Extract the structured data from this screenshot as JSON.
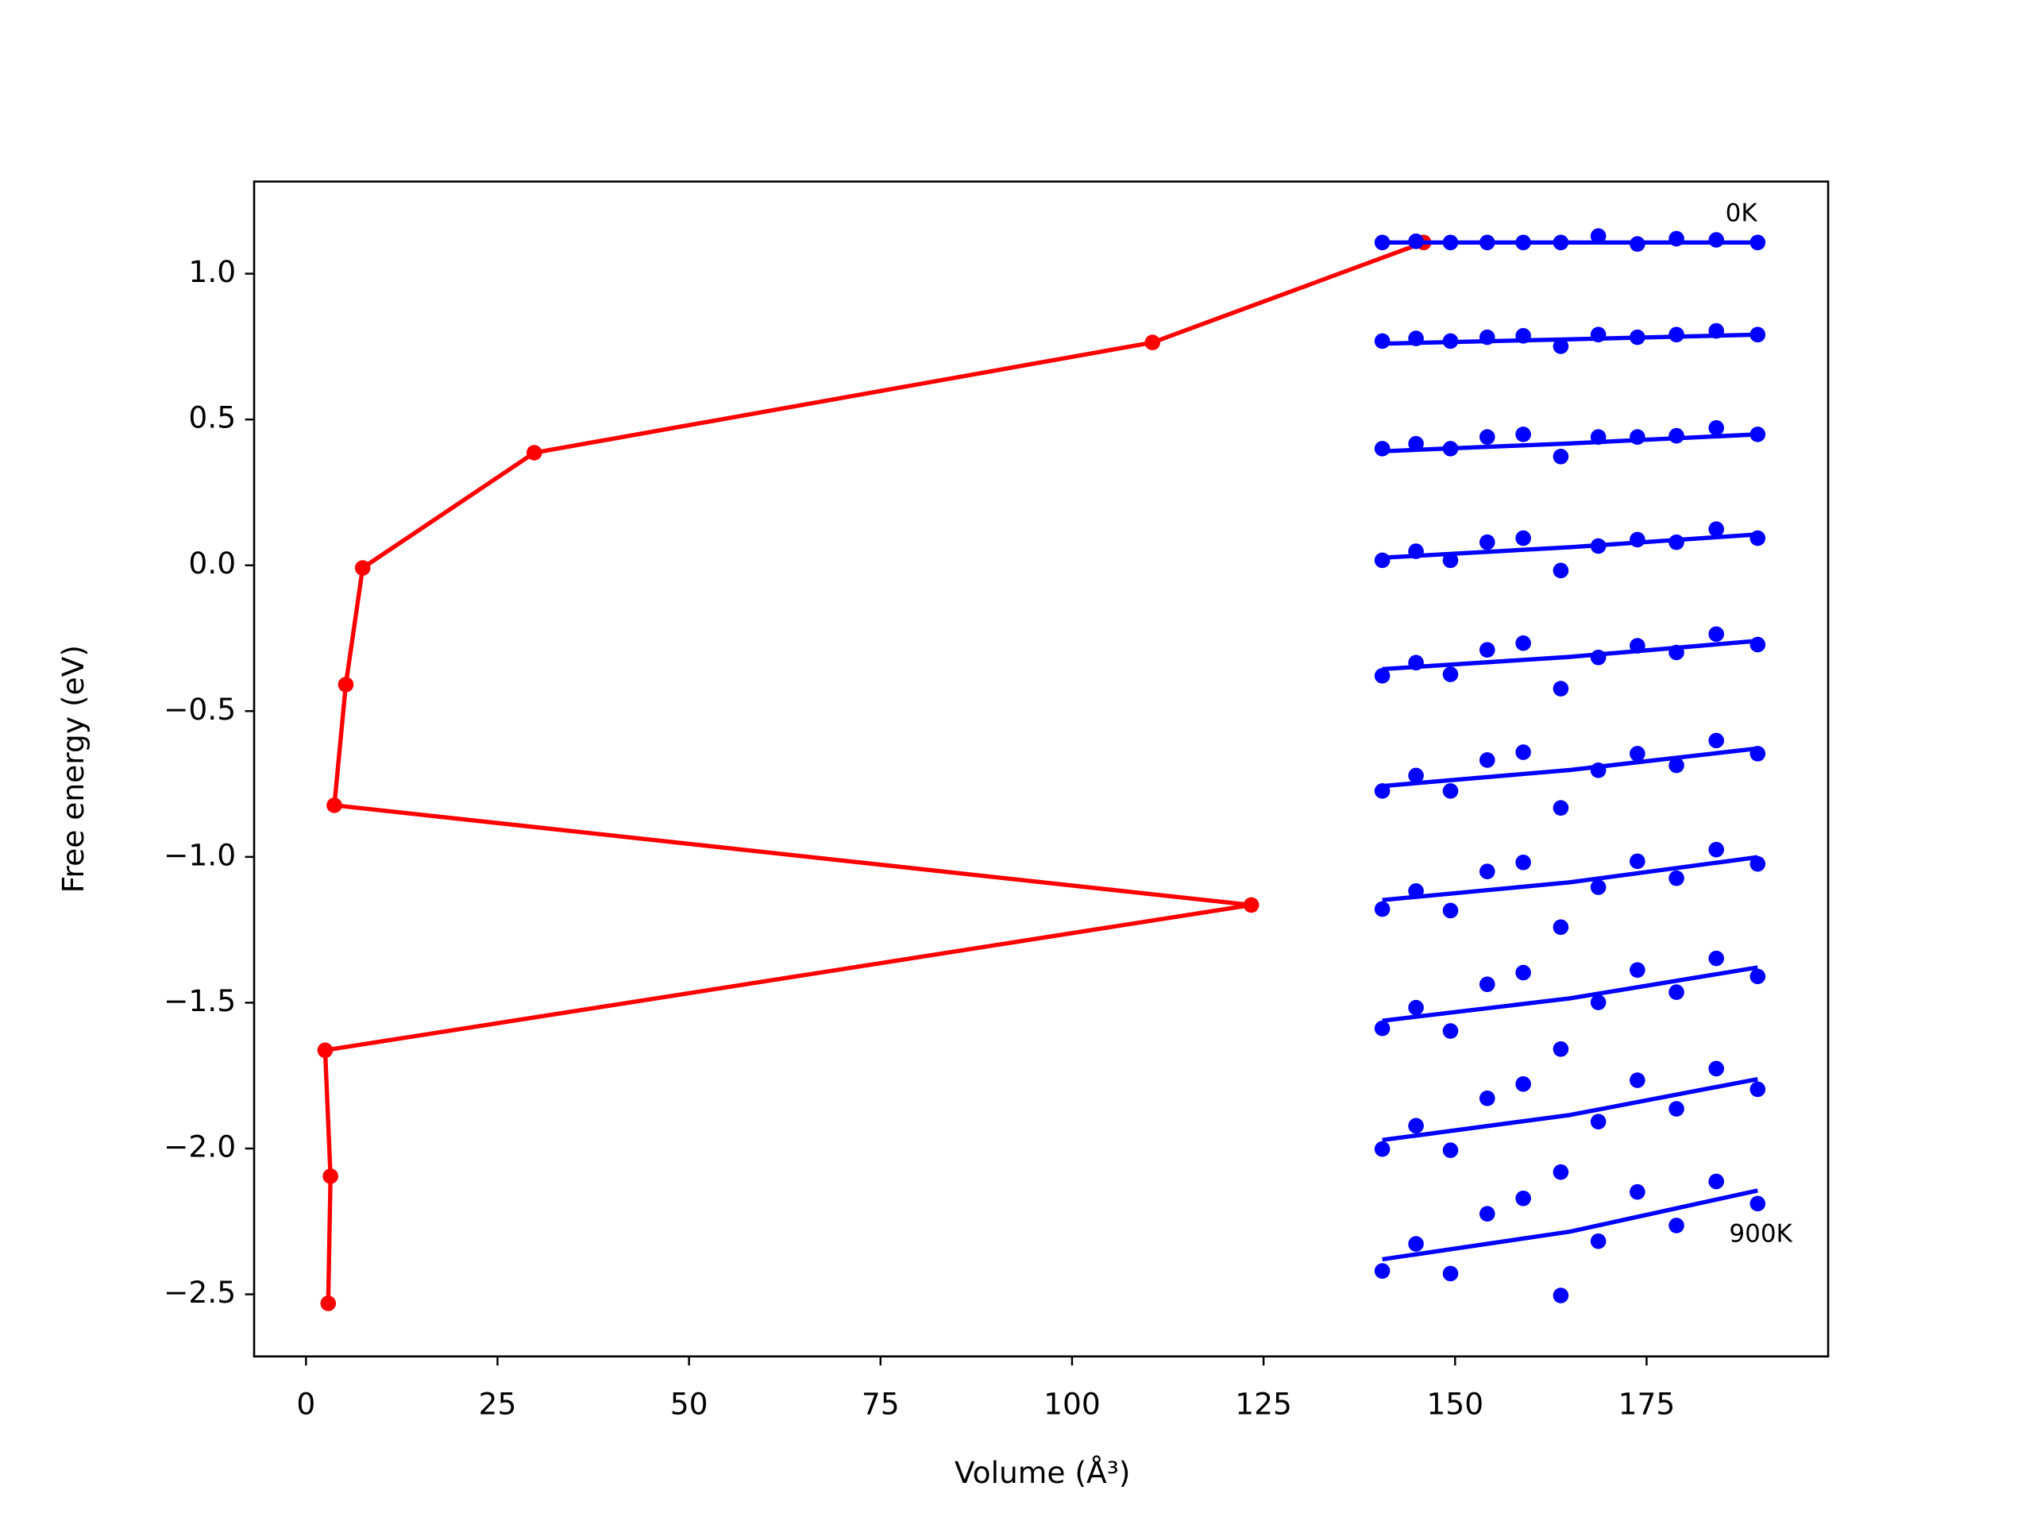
{
  "chart_data": {
    "type": "line",
    "xlabel": "Volume (Å³)",
    "ylabel": "Free energy (eV)",
    "xlim": [
      -6.77,
      198.7
    ],
    "ylim": [
      -2.713,
      1.316
    ],
    "xticks": [
      0,
      25,
      50,
      75,
      100,
      125,
      150,
      175
    ],
    "yticks": [
      {
        "value": 1.0,
        "label": "1.0"
      },
      {
        "value": 0.5,
        "label": "0.5"
      },
      {
        "value": 0.0,
        "label": "0.0"
      },
      {
        "value": -0.5,
        "label": "−0.5"
      },
      {
        "value": -1.0,
        "label": "−1.0"
      },
      {
        "value": -1.5,
        "label": "−1.5"
      },
      {
        "value": -2.0,
        "label": "−2.0"
      },
      {
        "value": -2.5,
        "label": "−2.5"
      }
    ],
    "annotations": [
      {
        "text": "0K"
      },
      {
        "text": "900K"
      }
    ],
    "series": [
      {
        "kind": "line-marker",
        "color": "#ff0000",
        "x": [
          145.9,
          110.5,
          29.8,
          7.4,
          5.2,
          3.7,
          123.4,
          2.5,
          3.2,
          2.9
        ],
        "values": [
          1.107,
          0.764,
          0.386,
          -0.009,
          -0.409,
          -0.823,
          -1.165,
          -1.663,
          -2.095,
          -2.531
        ]
      },
      {
        "kind": "scatter",
        "color": "#0000ff",
        "x": [
          140.5,
          144.9,
          149.4,
          154.2,
          158.9,
          163.8,
          168.7,
          173.8,
          178.9,
          184.1,
          189.5
        ],
        "values": [
          1.107,
          1.111,
          1.107,
          1.107,
          1.107,
          1.107,
          1.129,
          1.102,
          1.12,
          1.116,
          1.107
        ]
      },
      {
        "kind": "scatter",
        "color": "#0000ff",
        "x": [
          140.5,
          144.9,
          149.4,
          154.2,
          158.9,
          163.8,
          168.7,
          173.8,
          178.9,
          184.1,
          189.5
        ],
        "values": [
          0.769,
          0.778,
          0.769,
          0.782,
          0.787,
          0.751,
          0.791,
          0.782,
          0.791,
          0.804,
          0.791
        ]
      },
      {
        "kind": "scatter",
        "color": "#0000ff",
        "x": [
          140.5,
          144.9,
          149.4,
          154.2,
          158.9,
          163.8,
          168.7,
          173.8,
          178.9,
          184.1,
          189.5
        ],
        "values": [
          0.4,
          0.417,
          0.4,
          0.44,
          0.449,
          0.373,
          0.44,
          0.44,
          0.444,
          0.471,
          0.449
        ]
      },
      {
        "kind": "scatter",
        "color": "#0000ff",
        "x": [
          140.5,
          144.9,
          149.4,
          154.2,
          158.9,
          163.8,
          168.7,
          173.8,
          178.9,
          184.1,
          189.5
        ],
        "values": [
          0.017,
          0.048,
          0.017,
          0.079,
          0.093,
          -0.018,
          0.066,
          0.088,
          0.079,
          0.124,
          0.093
        ]
      },
      {
        "kind": "scatter",
        "color": "#0000ff",
        "x": [
          140.5,
          144.9,
          149.4,
          154.2,
          158.9,
          163.8,
          168.7,
          173.8,
          178.9,
          184.1,
          189.5
        ],
        "values": [
          -0.379,
          -0.334,
          -0.374,
          -0.29,
          -0.267,
          -0.423,
          -0.316,
          -0.276,
          -0.299,
          -0.236,
          -0.272
        ]
      },
      {
        "kind": "scatter",
        "color": "#0000ff",
        "x": [
          140.5,
          144.9,
          149.4,
          154.2,
          158.9,
          163.8,
          168.7,
          173.8,
          178.9,
          184.1,
          189.5
        ],
        "values": [
          -0.774,
          -0.721,
          -0.774,
          -0.668,
          -0.641,
          -0.832,
          -0.703,
          -0.646,
          -0.686,
          -0.601,
          -0.646
        ]
      },
      {
        "kind": "scatter",
        "color": "#0000ff",
        "x": [
          140.5,
          144.9,
          149.4,
          154.2,
          158.9,
          163.8,
          168.7,
          173.8,
          178.9,
          184.1,
          189.5
        ],
        "values": [
          -1.179,
          -1.117,
          -1.184,
          -1.05,
          -1.019,
          -1.241,
          -1.104,
          -1.015,
          -1.073,
          -0.975,
          -1.024
        ]
      },
      {
        "kind": "scatter",
        "color": "#0000ff",
        "x": [
          140.5,
          144.9,
          149.4,
          154.2,
          158.9,
          163.8,
          168.7,
          173.8,
          178.9,
          184.1,
          189.5
        ],
        "values": [
          -1.588,
          -1.517,
          -1.597,
          -1.437,
          -1.397,
          -1.659,
          -1.499,
          -1.388,
          -1.464,
          -1.348,
          -1.41
        ]
      },
      {
        "kind": "scatter",
        "color": "#0000ff",
        "x": [
          140.5,
          144.9,
          149.4,
          154.2,
          158.9,
          163.8,
          168.7,
          173.8,
          178.9,
          184.1,
          189.5
        ],
        "values": [
          -2.002,
          -1.922,
          -2.006,
          -1.828,
          -1.779,
          -2.081,
          -1.908,
          -1.766,
          -1.864,
          -1.726,
          -1.797
        ]
      },
      {
        "kind": "scatter",
        "color": "#0000ff",
        "x": [
          140.5,
          144.9,
          149.4,
          154.2,
          158.9,
          163.8,
          168.7,
          173.8,
          178.9,
          184.1,
          189.5
        ],
        "values": [
          -2.42,
          -2.327,
          -2.429,
          -2.224,
          -2.171,
          -2.504,
          -2.318,
          -2.149,
          -2.264,
          -2.113,
          -2.189
        ]
      },
      {
        "kind": "line",
        "color": "#0000ff",
        "x": [
          140.5,
          165,
          189.5
        ],
        "values": [
          1.107,
          1.107,
          1.107
        ]
      },
      {
        "kind": "line",
        "color": "#0000ff",
        "x": [
          140.5,
          165,
          189.5
        ],
        "values": [
          0.76,
          0.775,
          0.791
        ]
      },
      {
        "kind": "line",
        "color": "#0000ff",
        "x": [
          140.5,
          165,
          189.5
        ],
        "values": [
          0.391,
          0.418,
          0.449
        ]
      },
      {
        "kind": "line",
        "color": "#0000ff",
        "x": [
          140.5,
          165,
          189.5
        ],
        "values": [
          0.026,
          0.062,
          0.106
        ]
      },
      {
        "kind": "line",
        "color": "#0000ff",
        "x": [
          140.5,
          165,
          189.5
        ],
        "values": [
          -0.356,
          -0.314,
          -0.259
        ]
      },
      {
        "kind": "line",
        "color": "#0000ff",
        "x": [
          140.5,
          165,
          189.5
        ],
        "values": [
          -0.757,
          -0.702,
          -0.628
        ]
      },
      {
        "kind": "line",
        "color": "#0000ff",
        "x": [
          140.5,
          165,
          189.5
        ],
        "values": [
          -1.148,
          -1.087,
          -1.001
        ]
      },
      {
        "kind": "line",
        "color": "#0000ff",
        "x": [
          140.5,
          165,
          189.5
        ],
        "values": [
          -1.562,
          -1.485,
          -1.379
        ]
      },
      {
        "kind": "line",
        "color": "#0000ff",
        "x": [
          140.5,
          165,
          189.5
        ],
        "values": [
          -1.971,
          -1.885,
          -1.762
        ]
      },
      {
        "kind": "line",
        "color": "#0000ff",
        "x": [
          140.5,
          165,
          189.5
        ],
        "values": [
          -2.38,
          -2.285,
          -2.144
        ]
      }
    ]
  }
}
